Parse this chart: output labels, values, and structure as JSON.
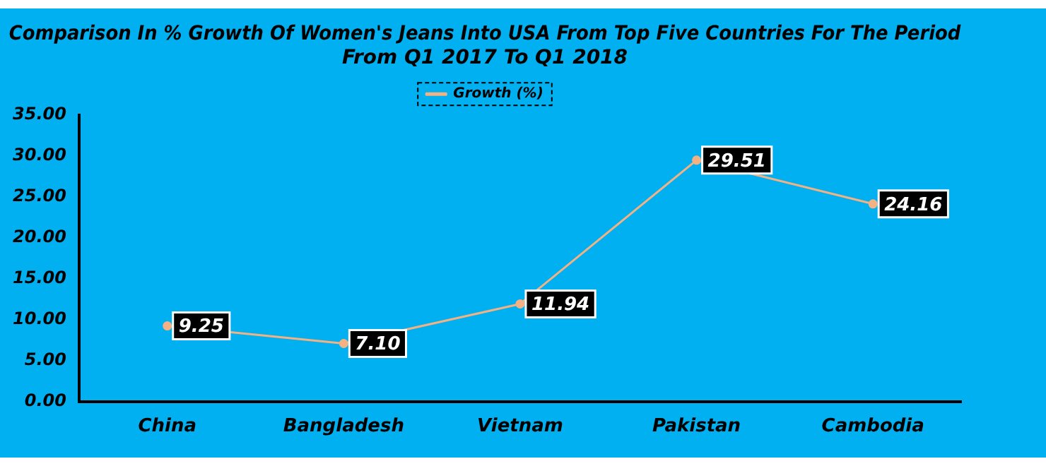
{
  "chart_data": {
    "type": "line",
    "title": "Comparison In % Growth Of Women's Jeans Into USA From Top Five Countries For The Period\nFrom Q1 2017 To Q1 2018",
    "categories": [
      "China",
      "Bangladesh",
      "Vietnam",
      "Pakistan",
      "Cambodia"
    ],
    "series": [
      {
        "name": "Growth (%)",
        "color": "#f4b183",
        "values": [
          9.25,
          7.1,
          11.94,
          29.51,
          24.16
        ],
        "value_labels": [
          "9.25",
          "7.10",
          "11.94",
          "29.51",
          "24.16"
        ]
      }
    ],
    "ylim": [
      0,
      35
    ],
    "yticks": [
      {
        "value": 0,
        "label": "0.00"
      },
      {
        "value": 5,
        "label": "5.00"
      },
      {
        "value": 10,
        "label": "10.00"
      },
      {
        "value": 15,
        "label": "15.00"
      },
      {
        "value": 20,
        "label": "20.00"
      },
      {
        "value": 25,
        "label": "25.00"
      },
      {
        "value": 30,
        "label": "30.00"
      },
      {
        "value": 35,
        "label": "35.00"
      }
    ],
    "grid": false,
    "legend": "top",
    "marker": "circle",
    "line_style": "solid"
  }
}
